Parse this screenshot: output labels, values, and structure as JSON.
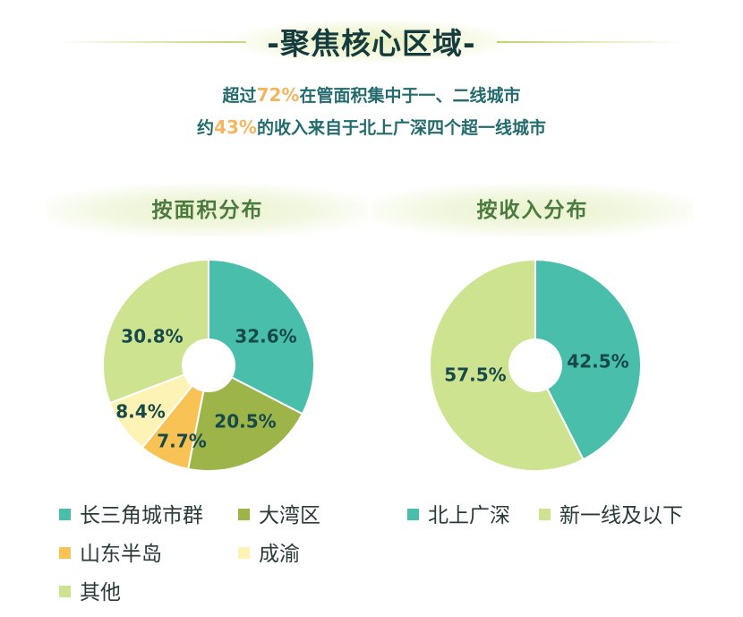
{
  "header": {
    "title": "-聚焦核心区域-",
    "line1": {
      "pre": "超过",
      "highlight": "72%",
      "post": "在管面积集中于一、二线城市"
    },
    "line2": {
      "pre": "约",
      "highlight": "43%",
      "post": "的收入来自于北上广深四个超一线城市"
    }
  },
  "panels": {
    "left_title": "按面积分布",
    "right_title": "按收入分布"
  },
  "colors": {
    "teal": "#49bfab",
    "olive": "#9db449",
    "orange": "#f8c354",
    "cream": "#fdf3b4",
    "lightgreen": "#cde390"
  },
  "chart_data": [
    {
      "type": "pie",
      "title": "按面积分布",
      "labels": [
        "长三角城市群",
        "大湾区",
        "山东半岛",
        "成渝",
        "其他"
      ],
      "values": [
        32.6,
        20.5,
        7.7,
        8.4,
        30.8
      ],
      "value_labels": [
        "32.6%",
        "20.5%",
        "7.7%",
        "8.4%",
        "30.8%"
      ],
      "colors": [
        "#49bfab",
        "#9db449",
        "#f8c354",
        "#fdf3b4",
        "#cde390"
      ],
      "donut": true
    },
    {
      "type": "pie",
      "title": "按收入分布",
      "labels": [
        "北上广深",
        "新一线及以下"
      ],
      "values": [
        42.5,
        57.5
      ],
      "value_labels": [
        "42.5%",
        "57.5%"
      ],
      "colors": [
        "#49bfab",
        "#cde390"
      ],
      "donut": true
    }
  ],
  "legends": {
    "left": [
      "长三角城市群",
      "大湾区",
      "山东半岛",
      "成渝",
      "其他"
    ],
    "right": [
      "北上广深",
      "新一线及以下"
    ]
  }
}
